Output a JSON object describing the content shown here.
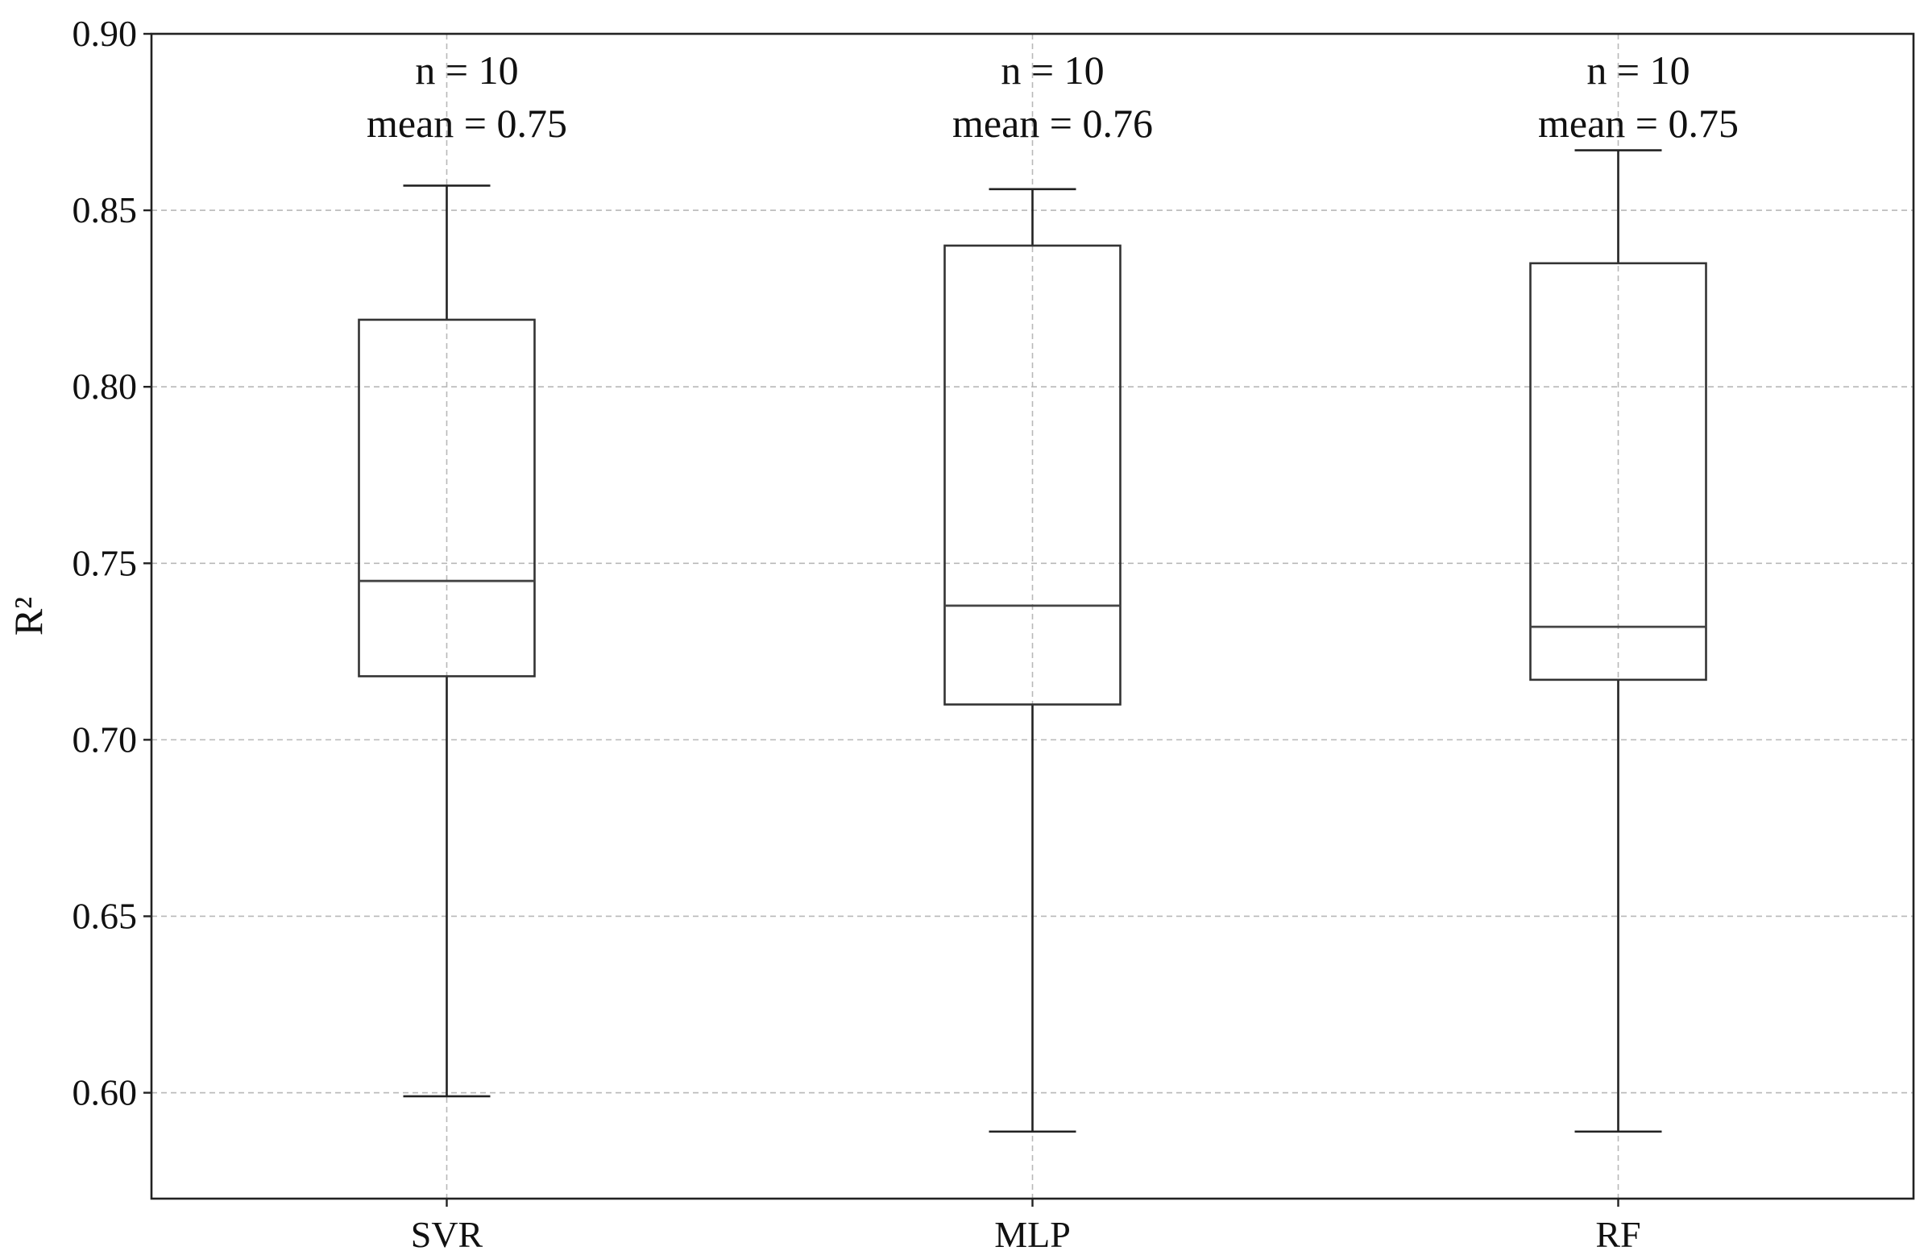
{
  "chart_data": {
    "type": "box",
    "title": "",
    "xlabel": "",
    "ylabel": "R²",
    "ylim": [
      0.57,
      0.9
    ],
    "yticks": [
      "0.60",
      "0.65",
      "0.70",
      "0.75",
      "0.80",
      "0.85",
      "0.90"
    ],
    "grid": true,
    "categories": [
      "SVR",
      "MLP",
      "RF"
    ],
    "boxes": [
      {
        "category": "SVR",
        "whisker_low": 0.599,
        "q1": 0.718,
        "median": 0.745,
        "q3": 0.819,
        "whisker_high": 0.857,
        "n_label": "n = 10",
        "mean_label": "mean = 0.75"
      },
      {
        "category": "MLP",
        "whisker_low": 0.589,
        "q1": 0.71,
        "median": 0.738,
        "q3": 0.84,
        "whisker_high": 0.856,
        "n_label": "n = 10",
        "mean_label": "mean = 0.76"
      },
      {
        "category": "RF",
        "whisker_low": 0.589,
        "q1": 0.717,
        "median": 0.732,
        "q3": 0.835,
        "whisker_high": 0.867,
        "n_label": "n = 10",
        "mean_label": "mean = 0.75"
      }
    ]
  }
}
